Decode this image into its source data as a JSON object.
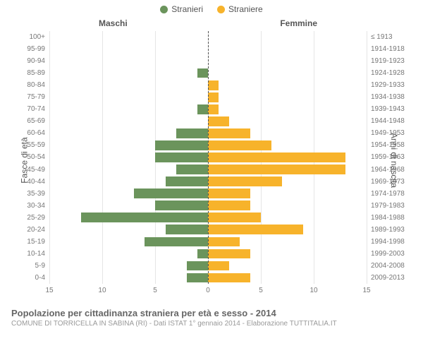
{
  "legend": {
    "male": {
      "label": "Stranieri",
      "color": "#6b945c"
    },
    "female": {
      "label": "Straniere",
      "color": "#f7b32b"
    }
  },
  "headers": {
    "male": "Maschi",
    "female": "Femmine"
  },
  "axis": {
    "left": "Fasce di età",
    "right": "Anni di nascita"
  },
  "chart": {
    "type": "population-pyramid",
    "xmax": 15,
    "x_ticks_male": [
      15,
      10,
      5,
      0
    ],
    "x_ticks_female": [
      5,
      10,
      15
    ],
    "background_color": "#ffffff",
    "grid_color": "#e5e5e5",
    "center_line_color": "#555555",
    "label_fontsize": 10,
    "bar_color_male": "#6b945c",
    "bar_color_female": "#f7b32b"
  },
  "rows": [
    {
      "age": "100+",
      "m": 0,
      "f": 0,
      "year": "≤ 1913"
    },
    {
      "age": "95-99",
      "m": 0,
      "f": 0,
      "year": "1914-1918"
    },
    {
      "age": "90-94",
      "m": 0,
      "f": 0,
      "year": "1919-1923"
    },
    {
      "age": "85-89",
      "m": 1,
      "f": 0,
      "year": "1924-1928"
    },
    {
      "age": "80-84",
      "m": 0,
      "f": 1,
      "year": "1929-1933"
    },
    {
      "age": "75-79",
      "m": 0,
      "f": 1,
      "year": "1934-1938"
    },
    {
      "age": "70-74",
      "m": 1,
      "f": 1,
      "year": "1939-1943"
    },
    {
      "age": "65-69",
      "m": 0,
      "f": 2,
      "year": "1944-1948"
    },
    {
      "age": "60-64",
      "m": 3,
      "f": 4,
      "year": "1949-1953"
    },
    {
      "age": "55-59",
      "m": 5,
      "f": 6,
      "year": "1954-1958"
    },
    {
      "age": "50-54",
      "m": 5,
      "f": 13,
      "year": "1959-1963"
    },
    {
      "age": "45-49",
      "m": 3,
      "f": 13,
      "year": "1964-1968"
    },
    {
      "age": "40-44",
      "m": 4,
      "f": 7,
      "year": "1969-1973"
    },
    {
      "age": "35-39",
      "m": 7,
      "f": 4,
      "year": "1974-1978"
    },
    {
      "age": "30-34",
      "m": 5,
      "f": 4,
      "year": "1979-1983"
    },
    {
      "age": "25-29",
      "m": 12,
      "f": 5,
      "year": "1984-1988"
    },
    {
      "age": "20-24",
      "m": 4,
      "f": 9,
      "year": "1989-1993"
    },
    {
      "age": "15-19",
      "m": 6,
      "f": 3,
      "year": "1994-1998"
    },
    {
      "age": "10-14",
      "m": 1,
      "f": 4,
      "year": "1999-2003"
    },
    {
      "age": "5-9",
      "m": 2,
      "f": 2,
      "year": "2004-2008"
    },
    {
      "age": "0-4",
      "m": 2,
      "f": 4,
      "year": "2009-2013"
    }
  ],
  "footer": {
    "title": "Popolazione per cittadinanza straniera per età e sesso - 2014",
    "subtitle": "COMUNE DI TORRICELLA IN SABINA (RI) - Dati ISTAT 1° gennaio 2014 - Elaborazione TUTTITALIA.IT"
  }
}
